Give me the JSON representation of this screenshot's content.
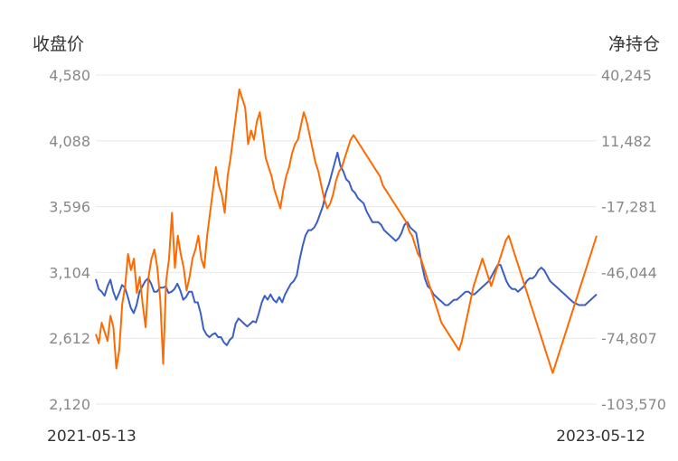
{
  "chart_data": {
    "type": "line",
    "left_axis_title": "收盘价",
    "right_axis_title": "净持仓",
    "left_ticks": [
      "4,580",
      "4,088",
      "3,596",
      "3,104",
      "2,612",
      "2,120"
    ],
    "right_ticks": [
      "40,245",
      "11,482",
      "-17,281",
      "-46,044",
      "-74,807",
      "-103,570"
    ],
    "left_ylim": [
      2120,
      4580
    ],
    "right_ylim": [
      -103570,
      40245
    ],
    "x_range": [
      "2021-05-13",
      "2023-05-12"
    ],
    "x_start_label": "2021-05-13",
    "x_end_label": "2023-05-12",
    "grid": true,
    "series": [
      {
        "axis": "left",
        "color": "#3b5fc5",
        "values": [
          3054,
          2980,
          2960,
          2930,
          3000,
          3050,
          2960,
          2900,
          2950,
          3010,
          2990,
          2920,
          2840,
          2800,
          2860,
          2960,
          3000,
          3040,
          3060,
          3020,
          2960,
          2960,
          2990,
          2990,
          3000,
          2950,
          2960,
          2980,
          3020,
          2970,
          2900,
          2920,
          2960,
          2960,
          2880,
          2880,
          2800,
          2680,
          2640,
          2620,
          2640,
          2650,
          2620,
          2620,
          2580,
          2560,
          2600,
          2620,
          2720,
          2760,
          2740,
          2720,
          2700,
          2720,
          2740,
          2730,
          2800,
          2880,
          2930,
          2900,
          2940,
          2900,
          2880,
          2920,
          2880,
          2940,
          2980,
          3020,
          3040,
          3080,
          3200,
          3300,
          3380,
          3420,
          3420,
          3440,
          3480,
          3540,
          3600,
          3700,
          3760,
          3840,
          3920,
          4000,
          3900,
          3860,
          3800,
          3780,
          3720,
          3700,
          3660,
          3640,
          3620,
          3560,
          3520,
          3480,
          3480,
          3480,
          3460,
          3420,
          3400,
          3380,
          3360,
          3340,
          3360,
          3400,
          3460,
          3480,
          3440,
          3420,
          3400,
          3280,
          3160,
          3060,
          3000,
          2980,
          2940,
          2920,
          2900,
          2880,
          2860,
          2860,
          2880,
          2900,
          2900,
          2920,
          2940,
          2960,
          2960,
          2940,
          2940,
          2960,
          2980,
          3000,
          3020,
          3040,
          3080,
          3120,
          3160,
          3160,
          3100,
          3040,
          3000,
          2980,
          2980,
          2960,
          2980,
          3000,
          3040,
          3060,
          3060,
          3080,
          3120,
          3140,
          3120,
          3080,
          3040,
          3020,
          3000,
          2980,
          2960,
          2940,
          2920,
          2900,
          2880,
          2870,
          2860,
          2860,
          2860,
          2880,
          2900,
          2920,
          2940
        ]
      },
      {
        "axis": "right",
        "color": "#ff6a00",
        "values": [
          -73000,
          -77000,
          -68000,
          -72000,
          -76000,
          -65000,
          -70000,
          -88000,
          -80000,
          -60000,
          -52000,
          -38000,
          -45000,
          -40000,
          -55000,
          -48000,
          -60000,
          -70000,
          -48000,
          -40000,
          -36000,
          -44000,
          -58000,
          -86000,
          -50000,
          -40000,
          -20000,
          -44000,
          -30000,
          -38000,
          -44000,
          -54000,
          -48000,
          -40000,
          -36000,
          -30000,
          -40000,
          -44000,
          -30000,
          -20000,
          -10000,
          0,
          -8000,
          -12000,
          -20000,
          -4000,
          4000,
          14000,
          24000,
          34000,
          30000,
          26000,
          10000,
          16000,
          12000,
          20000,
          24000,
          14000,
          4000,
          0,
          -4000,
          -10000,
          -14000,
          -18000,
          -10000,
          -4000,
          0,
          6000,
          10000,
          12000,
          18000,
          24000,
          20000,
          14000,
          8000,
          2000,
          -2000,
          -8000,
          -14000,
          -18000,
          -16000,
          -12000,
          -6000,
          -2000,
          0,
          4000,
          8000,
          12000,
          14000,
          12000,
          10000,
          8000,
          6000,
          4000,
          2000,
          0,
          -2000,
          -4000,
          -8000,
          -10000,
          -12000,
          -14000,
          -16000,
          -18000,
          -20000,
          -22000,
          -24000,
          -28000,
          -30000,
          -34000,
          -38000,
          -40000,
          -44000,
          -48000,
          -52000,
          -56000,
          -60000,
          -64000,
          -68000,
          -70000,
          -72000,
          -74000,
          -76000,
          -78000,
          -80000,
          -76000,
          -70000,
          -64000,
          -58000,
          -52000,
          -48000,
          -44000,
          -40000,
          -44000,
          -48000,
          -52000,
          -48000,
          -44000,
          -40000,
          -36000,
          -32000,
          -30000,
          -34000,
          -38000,
          -42000,
          -46000,
          -50000,
          -54000,
          -58000,
          -62000,
          -66000,
          -70000,
          -74000,
          -78000,
          -82000,
          -86000,
          -90000,
          -86000,
          -82000,
          -78000,
          -74000,
          -70000,
          -66000,
          -62000,
          -58000,
          -54000,
          -50000,
          -46000,
          -42000,
          -38000,
          -34000,
          -30000
        ]
      }
    ]
  }
}
